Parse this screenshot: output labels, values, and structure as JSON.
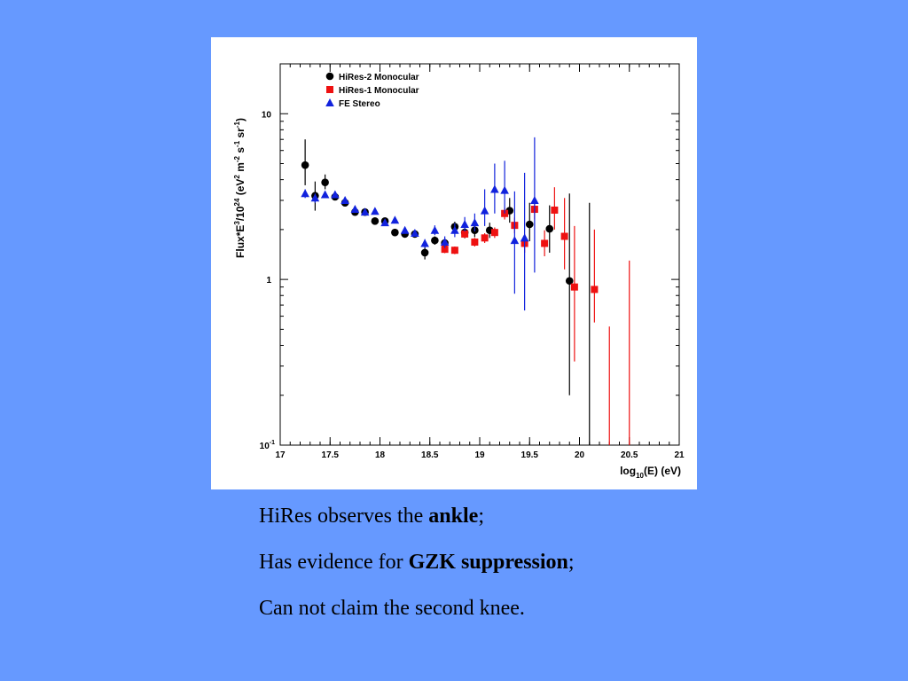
{
  "slide": {
    "background": "#6699ff",
    "caption": {
      "line1": {
        "pre": "HiRes observes the ",
        "bold": "ankle",
        "post": ";"
      },
      "line2": {
        "pre": "Has evidence for ",
        "bold": "GZK suppression",
        "post": ";"
      },
      "line3": {
        "text": "Can not claim the second knee."
      }
    }
  },
  "chart_data": {
    "type": "scatter",
    "title": "",
    "xlabel_main": "log",
    "xlabel_sub": "10",
    "xlabel_rest": "(E) (eV)",
    "ylabel_parts": [
      "Flux*E",
      "3",
      "/10",
      "24",
      " (eV",
      "2",
      " m",
      "-2",
      " s",
      "-1",
      " sr",
      "-1",
      ")"
    ],
    "xlim": [
      17,
      21
    ],
    "ylim": [
      0.1,
      20
    ],
    "yscale": "log",
    "grid": false,
    "legend_position": "top-left",
    "x_ticks": [
      "17",
      "17.5",
      "18",
      "18.5",
      "19",
      "19.5",
      "20",
      "20.5",
      "21"
    ],
    "y_ticks": [
      {
        "value": 10,
        "label": "10",
        "exp": ""
      },
      {
        "value": 1,
        "label": "1",
        "exp": ""
      },
      {
        "value": 0.1,
        "label": "10",
        "exp": "-1"
      }
    ],
    "series": [
      {
        "name": "HiRes-2 Monocular",
        "marker": "circle",
        "color": "#000000",
        "points": [
          {
            "x": 17.25,
            "y": 4.9,
            "lo": 3.7,
            "hi": 7.0
          },
          {
            "x": 17.35,
            "y": 3.2,
            "lo": 2.6,
            "hi": 3.9
          },
          {
            "x": 17.45,
            "y": 3.85,
            "lo": 3.5,
            "hi": 4.3
          },
          {
            "x": 17.55,
            "y": 3.15,
            "lo": 3.0,
            "hi": 3.3
          },
          {
            "x": 17.65,
            "y": 2.9,
            "lo": 2.8,
            "hi": 3.0
          },
          {
            "x": 17.75,
            "y": 2.55,
            "lo": 2.45,
            "hi": 2.65
          },
          {
            "x": 17.85,
            "y": 2.55,
            "lo": 2.45,
            "hi": 2.65
          },
          {
            "x": 17.95,
            "y": 2.25,
            "lo": 2.15,
            "hi": 2.35
          },
          {
            "x": 18.05,
            "y": 2.25,
            "lo": 2.15,
            "hi": 2.35
          },
          {
            "x": 18.15,
            "y": 1.92,
            "lo": 1.84,
            "hi": 2.0
          },
          {
            "x": 18.25,
            "y": 1.88,
            "lo": 1.8,
            "hi": 1.96
          },
          {
            "x": 18.35,
            "y": 1.88,
            "lo": 1.8,
            "hi": 1.96
          },
          {
            "x": 18.45,
            "y": 1.45,
            "lo": 1.32,
            "hi": 1.58
          },
          {
            "x": 18.55,
            "y": 1.72,
            "lo": 1.62,
            "hi": 1.82
          },
          {
            "x": 18.65,
            "y": 1.66,
            "lo": 1.56,
            "hi": 1.76
          },
          {
            "x": 18.75,
            "y": 2.08,
            "lo": 1.93,
            "hi": 2.23
          },
          {
            "x": 18.85,
            "y": 1.92,
            "lo": 1.77,
            "hi": 2.1
          },
          {
            "x": 18.95,
            "y": 1.98,
            "lo": 1.8,
            "hi": 2.18
          },
          {
            "x": 19.1,
            "y": 1.98,
            "lo": 1.78,
            "hi": 2.2
          },
          {
            "x": 19.3,
            "y": 2.6,
            "lo": 2.2,
            "hi": 3.1
          },
          {
            "x": 19.5,
            "y": 2.15,
            "lo": 1.7,
            "hi": 2.9
          },
          {
            "x": 19.7,
            "y": 2.02,
            "lo": 1.45,
            "hi": 2.8
          },
          {
            "x": 19.9,
            "y": 0.98,
            "lo": 0.2,
            "hi": 3.3
          },
          {
            "x": 20.1,
            "y": null,
            "lo": 0.1,
            "hi": 2.9
          }
        ]
      },
      {
        "name": "HiRes-1 Monocular",
        "marker": "square",
        "color": "#ee1111",
        "points": [
          {
            "x": 18.65,
            "y": 1.52,
            "lo": 1.44,
            "hi": 1.6
          },
          {
            "x": 18.75,
            "y": 1.5,
            "lo": 1.42,
            "hi": 1.58
          },
          {
            "x": 18.85,
            "y": 1.88,
            "lo": 1.78,
            "hi": 1.98
          },
          {
            "x": 18.95,
            "y": 1.68,
            "lo": 1.58,
            "hi": 1.78
          },
          {
            "x": 19.05,
            "y": 1.78,
            "lo": 1.66,
            "hi": 1.9
          },
          {
            "x": 19.15,
            "y": 1.92,
            "lo": 1.78,
            "hi": 2.06
          },
          {
            "x": 19.25,
            "y": 2.5,
            "lo": 2.3,
            "hi": 2.7
          },
          {
            "x": 19.35,
            "y": 2.12,
            "lo": 1.9,
            "hi": 2.36
          },
          {
            "x": 19.45,
            "y": 1.65,
            "lo": 1.45,
            "hi": 1.88
          },
          {
            "x": 19.55,
            "y": 2.65,
            "lo": 2.3,
            "hi": 3.05
          },
          {
            "x": 19.65,
            "y": 1.65,
            "lo": 1.38,
            "hi": 1.98
          },
          {
            "x": 19.75,
            "y": 2.62,
            "lo": 2.0,
            "hi": 3.6
          },
          {
            "x": 19.85,
            "y": 1.82,
            "lo": 1.15,
            "hi": 3.1
          },
          {
            "x": 19.95,
            "y": 0.9,
            "lo": 0.32,
            "hi": 2.1
          },
          {
            "x": 20.15,
            "y": 0.87,
            "lo": 0.55,
            "hi": 2.0
          },
          {
            "x": 20.3,
            "y": null,
            "lo": 0.1,
            "hi": 0.52
          },
          {
            "x": 20.5,
            "y": null,
            "lo": 0.1,
            "hi": 1.3
          }
        ]
      },
      {
        "name": "FE Stereo",
        "marker": "triangle",
        "color": "#1122dd",
        "points": [
          {
            "x": 17.25,
            "y": 3.3,
            "lo": 3.1,
            "hi": 3.5
          },
          {
            "x": 17.35,
            "y": 3.1,
            "lo": 2.9,
            "hi": 3.3
          },
          {
            "x": 17.45,
            "y": 3.25,
            "lo": 3.1,
            "hi": 3.4
          },
          {
            "x": 17.55,
            "y": 3.25,
            "lo": 3.1,
            "hi": 3.4
          },
          {
            "x": 17.65,
            "y": 3.0,
            "lo": 2.9,
            "hi": 3.1
          },
          {
            "x": 17.75,
            "y": 2.65,
            "lo": 2.55,
            "hi": 2.75
          },
          {
            "x": 17.85,
            "y": 2.55,
            "lo": 2.45,
            "hi": 2.65
          },
          {
            "x": 17.95,
            "y": 2.58,
            "lo": 2.5,
            "hi": 2.66
          },
          {
            "x": 18.05,
            "y": 2.2,
            "lo": 2.12,
            "hi": 2.28
          },
          {
            "x": 18.15,
            "y": 2.28,
            "lo": 2.2,
            "hi": 2.36
          },
          {
            "x": 18.25,
            "y": 1.98,
            "lo": 1.9,
            "hi": 2.06
          },
          {
            "x": 18.35,
            "y": 1.9,
            "lo": 1.82,
            "hi": 1.98
          },
          {
            "x": 18.45,
            "y": 1.65,
            "lo": 1.55,
            "hi": 1.75
          },
          {
            "x": 18.55,
            "y": 1.98,
            "lo": 1.85,
            "hi": 2.12
          },
          {
            "x": 18.65,
            "y": 1.68,
            "lo": 1.55,
            "hi": 1.82
          },
          {
            "x": 18.75,
            "y": 1.98,
            "lo": 1.8,
            "hi": 2.18
          },
          {
            "x": 18.85,
            "y": 2.15,
            "lo": 1.95,
            "hi": 2.38
          },
          {
            "x": 18.95,
            "y": 2.2,
            "lo": 1.95,
            "hi": 2.5
          },
          {
            "x": 19.05,
            "y": 2.6,
            "lo": 2.1,
            "hi": 3.5
          },
          {
            "x": 19.15,
            "y": 3.5,
            "lo": 2.5,
            "hi": 5.0
          },
          {
            "x": 19.25,
            "y": 3.45,
            "lo": 2.5,
            "hi": 5.2
          },
          {
            "x": 19.35,
            "y": 1.72,
            "lo": 0.82,
            "hi": 3.4
          },
          {
            "x": 19.45,
            "y": 1.78,
            "lo": 0.65,
            "hi": 4.4
          },
          {
            "x": 19.55,
            "y": 3.0,
            "lo": 1.1,
            "hi": 7.2
          }
        ]
      }
    ]
  }
}
